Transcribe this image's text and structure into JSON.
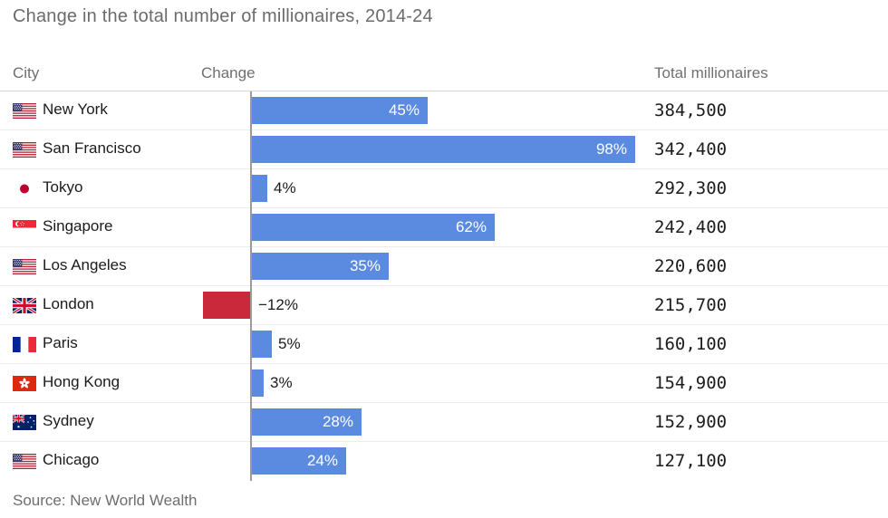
{
  "title": "Change in the total number of millionaires, 2014-24",
  "columns": {
    "city": "City",
    "change": "Change",
    "total": "Total millionaires"
  },
  "source": "Source: New World Wealth",
  "colors": {
    "positive_bar": "#5b8be1",
    "negative_bar": "#c9293a",
    "axis_line": "#9a9a9a"
  },
  "chart_data": {
    "type": "bar",
    "orientation": "horizontal",
    "title": "Change in the total number of millionaires, 2014-24",
    "value_unit": "%",
    "value_range": [
      -12,
      98
    ],
    "grid": "row-separators-only",
    "rows": [
      {
        "city": "New York",
        "flag_icon": "flag-us",
        "change_pct": 45,
        "change_label": "45%",
        "total_millionaires": "384,500"
      },
      {
        "city": "San Francisco",
        "flag_icon": "flag-us",
        "change_pct": 98,
        "change_label": "98%",
        "total_millionaires": "342,400"
      },
      {
        "city": "Tokyo",
        "flag_icon": "flag-jp",
        "change_pct": 4,
        "change_label": "4%",
        "total_millionaires": "292,300"
      },
      {
        "city": "Singapore",
        "flag_icon": "flag-sg",
        "change_pct": 62,
        "change_label": "62%",
        "total_millionaires": "242,400"
      },
      {
        "city": "Los Angeles",
        "flag_icon": "flag-us",
        "change_pct": 35,
        "change_label": "35%",
        "total_millionaires": "220,600"
      },
      {
        "city": "London",
        "flag_icon": "flag-gb",
        "change_pct": -12,
        "change_label": "−12%",
        "total_millionaires": "215,700"
      },
      {
        "city": "Paris",
        "flag_icon": "flag-fr",
        "change_pct": 5,
        "change_label": "5%",
        "total_millionaires": "160,100"
      },
      {
        "city": "Hong Kong",
        "flag_icon": "flag-hk",
        "change_pct": 3,
        "change_label": "3%",
        "total_millionaires": "154,900"
      },
      {
        "city": "Sydney",
        "flag_icon": "flag-au",
        "change_pct": 28,
        "change_label": "28%",
        "total_millionaires": "152,900"
      },
      {
        "city": "Chicago",
        "flag_icon": "flag-us",
        "change_pct": 24,
        "change_label": "24%",
        "total_millionaires": "127,100"
      }
    ]
  }
}
